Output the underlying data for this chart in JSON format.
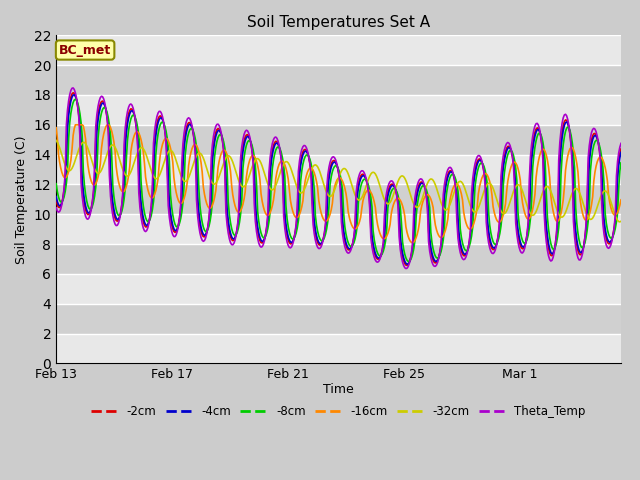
{
  "title": "Soil Temperatures Set A",
  "xlabel": "Time",
  "ylabel": "Soil Temperature (C)",
  "ylim": [
    0,
    22
  ],
  "yticks": [
    0,
    2,
    4,
    6,
    8,
    10,
    12,
    14,
    16,
    18,
    20,
    22
  ],
  "colors": {
    "2cm": "#dd0000",
    "4cm": "#0000cc",
    "8cm": "#00cc00",
    "16cm": "#ff8800",
    "32cm": "#cccc00",
    "Theta": "#aa00cc"
  },
  "legend_labels": [
    "-2cm",
    "-4cm",
    "-8cm",
    "-16cm",
    "-32cm",
    "Theta_Temp"
  ],
  "annotation_text": "BC_met",
  "annotation_bg": "#ffffaa",
  "annotation_border": "#888800",
  "fig_bg": "#cccccc",
  "plot_bg_light": "#e8e8e8",
  "plot_bg_dark": "#d0d0d0",
  "n_points": 500,
  "n_days": 19.5,
  "xtick_days": [
    0,
    4,
    8,
    12,
    16
  ],
  "xtick_labels": [
    "Feb 13",
    "Feb 17",
    "Feb 21",
    "Feb 25",
    "Mar 1"
  ]
}
